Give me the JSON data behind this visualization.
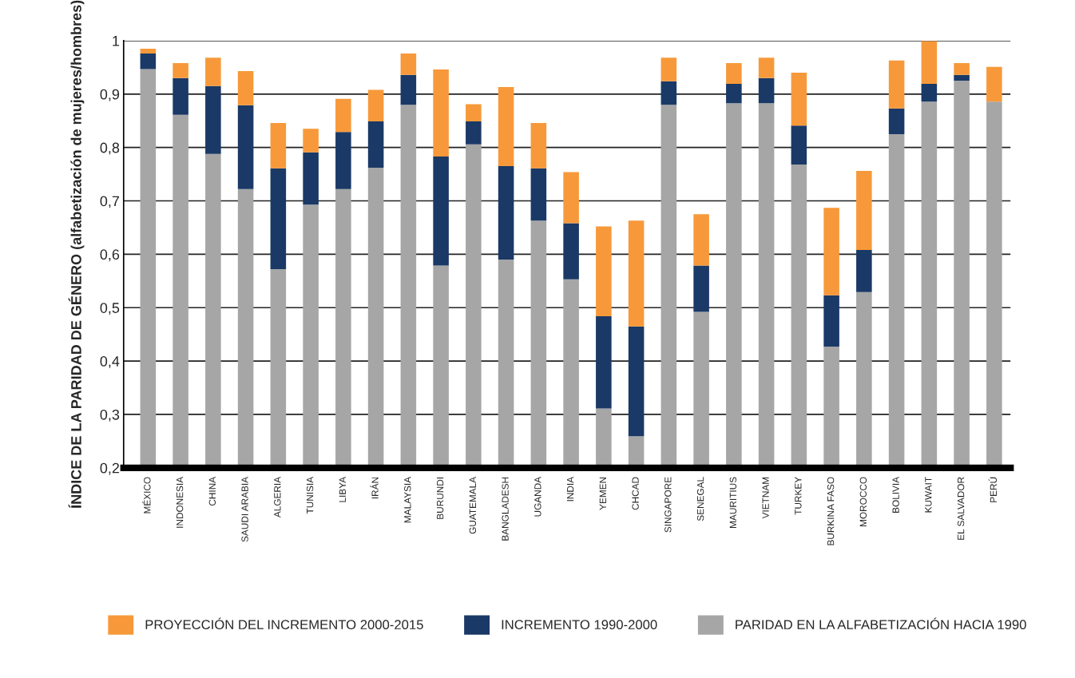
{
  "chart_data": {
    "type": "bar",
    "stacked": true,
    "ylabel": "ÍNDICE DE LA PARIDAD DE GÉNERO (alfabetización de mujeres/hombres)",
    "categories": [
      "MÉXICO",
      "INDONESIA",
      "CHINA",
      "SAUDI ARABIA",
      "ALGERIA",
      "TUNISIA",
      "LIBYA",
      "IRÁN",
      "MALAYSIA",
      "BURUNDI",
      "GUATEMALA",
      "BANGLADESH",
      "UGANDA",
      "INDIA",
      "YEMEN",
      "CHCAD",
      "SINGAPORE",
      "SENEGAL",
      "MAURITIUS",
      "VIETNAM",
      "TURKEY",
      "BURKINA FASO",
      "MOROCCO",
      "BOLIVIA",
      "KUWAIT",
      "EL SALVADOR",
      "PERÚ"
    ],
    "series": [
      {
        "name": "PARIDAD EN LA ALFABETIZACIÓN HACIA 1990",
        "color": "#a6a6a6",
        "values": [
          0.947,
          0.861,
          0.788,
          0.722,
          0.572,
          0.693,
          0.722,
          0.762,
          0.88,
          0.579,
          0.806,
          0.59,
          0.663,
          0.553,
          0.311,
          0.259,
          0.88,
          0.492,
          0.883,
          0.883,
          0.768,
          0.427,
          0.529,
          0.825,
          0.886,
          0.925,
          0.886
        ]
      },
      {
        "name": "INCREMENTO 1990-2000",
        "color": "#1a3966",
        "base": [
          0.947,
          0.861,
          0.788,
          0.722,
          0.572,
          0.693,
          0.722,
          0.762,
          0.88,
          0.579,
          0.806,
          0.59,
          0.663,
          0.553,
          0.311,
          0.259,
          0.88,
          0.492,
          0.883,
          0.883,
          0.768,
          0.427,
          0.529,
          0.825,
          0.886,
          0.925,
          null
        ],
        "values": [
          0.029,
          0.069,
          0.127,
          0.157,
          0.189,
          0.098,
          0.107,
          0.087,
          0.056,
          0.204,
          0.043,
          0.175,
          0.098,
          0.105,
          0.173,
          0.206,
          0.044,
          0.087,
          0.036,
          0.047,
          0.073,
          0.096,
          0.079,
          0.048,
          0.033,
          0.011,
          null
        ]
      },
      {
        "name": "PROYECCIÓN DEL INCREMENTO 2000-2015",
        "color": "#f7993a",
        "base": [
          0.976,
          0.93,
          0.915,
          0.879,
          0.761,
          0.791,
          0.829,
          0.849,
          0.936,
          0.783,
          0.849,
          0.765,
          0.761,
          0.658,
          0.484,
          0.465,
          0.924,
          0.579,
          0.919,
          0.93,
          0.841,
          0.523,
          0.608,
          0.873,
          0.919,
          0.936,
          0.886
        ],
        "values": [
          0.009,
          0.028,
          0.053,
          0.064,
          0.085,
          0.044,
          0.062,
          0.059,
          0.04,
          0.163,
          0.032,
          0.148,
          0.085,
          0.096,
          0.168,
          0.198,
          0.044,
          0.096,
          0.039,
          0.038,
          0.099,
          0.164,
          0.148,
          0.09,
          0.08,
          0.022,
          0.065
        ]
      }
    ],
    "ylim": [
      0.2,
      1
    ],
    "yticks": [
      {
        "value": 0.2,
        "label": "0,2"
      },
      {
        "value": 0.3,
        "label": "0,3"
      },
      {
        "value": 0.4,
        "label": "0,4"
      },
      {
        "value": 0.5,
        "label": "0,5"
      },
      {
        "value": 0.6,
        "label": "0,6"
      },
      {
        "value": 0.7,
        "label": "0,7"
      },
      {
        "value": 0.8,
        "label": "0,8"
      },
      {
        "value": 0.9,
        "label": "0,9"
      },
      {
        "value": 1,
        "label": "1"
      }
    ],
    "grid": "y",
    "legend": "bottom"
  }
}
